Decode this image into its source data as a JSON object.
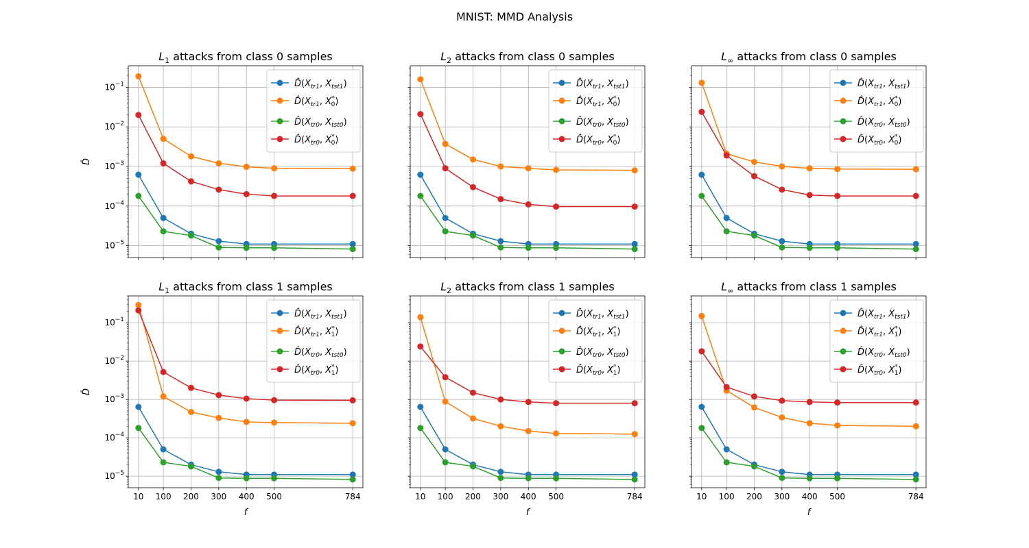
{
  "figure": {
    "title": "MNIST: MMD Analysis"
  },
  "colors": {
    "blue": "#1f77b4",
    "orange": "#ff7f0e",
    "green": "#2ca02c",
    "red": "#d62728",
    "grid": "#b0b0b0"
  },
  "chart_data": [
    {
      "type": "line",
      "yscale": "log",
      "ylim": [
        5e-06,
        0.35
      ],
      "title": "L1 attacks from class 0 samples",
      "title_math": {
        "var": "L",
        "sub": "1",
        "rest": " attacks from class 0 samples"
      },
      "xlabel": "",
      "ylabel": "D̂",
      "x": [
        10,
        100,
        200,
        300,
        400,
        500,
        784
      ],
      "xtick_labels": [
        "10",
        "100",
        "200",
        "300",
        "400",
        "500",
        "784"
      ],
      "ytick_labels": [
        "10",
        "10",
        "10",
        "10",
        "10"
      ],
      "ytick_exponents": [
        "-5",
        "-4",
        "-3",
        "-2",
        "-1"
      ],
      "series": [
        {
          "name": "D̂(X_tr1, X_tst1)",
          "D_args": [
            "X",
            "tr1",
            "X",
            "tst1"
          ],
          "color": "#1f77b4",
          "values": [
            0.00062,
            5e-05,
            2e-05,
            1.3e-05,
            1.1e-05,
            1.1e-05,
            1.1e-05
          ]
        },
        {
          "name": "D̂(X_tr1, X_0*)",
          "D_args": [
            "X",
            "tr1",
            "X",
            "0",
            "*"
          ],
          "color": "#ff7f0e",
          "values": [
            0.19,
            0.005,
            0.0018,
            0.0012,
            0.00098,
            0.0009,
            0.00088
          ]
        },
        {
          "name": "D̂(X_tr0, X_tst0)",
          "D_args": [
            "X",
            "tr0",
            "X",
            "tst0"
          ],
          "color": "#2ca02c",
          "values": [
            0.00018,
            2.3e-05,
            1.8e-05,
            9e-06,
            8.8e-06,
            8.8e-06,
            8.2e-06
          ]
        },
        {
          "name": "D̂(X_tr0, X_0*)",
          "D_args": [
            "X",
            "tr0",
            "X",
            "0",
            "*"
          ],
          "color": "#d62728",
          "values": [
            0.02,
            0.0012,
            0.00042,
            0.00026,
            0.0002,
            0.00018,
            0.00018
          ]
        }
      ]
    },
    {
      "type": "line",
      "yscale": "log",
      "ylim": [
        5e-06,
        0.35
      ],
      "title": "L2 attacks from class 0 samples",
      "title_math": {
        "var": "L",
        "sub": "2",
        "rest": " attacks from class 0 samples"
      },
      "xlabel": "",
      "ylabel": "",
      "x": [
        10,
        100,
        200,
        300,
        400,
        500,
        784
      ],
      "xtick_labels": [
        "10",
        "100",
        "200",
        "300",
        "400",
        "500",
        "784"
      ],
      "ytick_labels": [],
      "ytick_exponents": [],
      "series": [
        {
          "name": "D̂(X_tr1, X_tst1)",
          "D_args": [
            "X",
            "tr1",
            "X",
            "tst1"
          ],
          "color": "#1f77b4",
          "values": [
            0.00062,
            5e-05,
            2e-05,
            1.3e-05,
            1.1e-05,
            1.1e-05,
            1.1e-05
          ]
        },
        {
          "name": "D̂(X_tr1, X_0*)",
          "D_args": [
            "X",
            "tr1",
            "X",
            "0",
            "*"
          ],
          "color": "#ff7f0e",
          "values": [
            0.16,
            0.0037,
            0.0015,
            0.001,
            0.0009,
            0.00082,
            0.0008
          ]
        },
        {
          "name": "D̂(X_tr0, X_tst0)",
          "D_args": [
            "X",
            "tr0",
            "X",
            "tst0"
          ],
          "color": "#2ca02c",
          "values": [
            0.00018,
            2.3e-05,
            1.8e-05,
            9e-06,
            8.8e-06,
            8.8e-06,
            8.2e-06
          ]
        },
        {
          "name": "D̂(X_tr0, X_0*)",
          "D_args": [
            "X",
            "tr0",
            "X",
            "0",
            "*"
          ],
          "color": "#d62728",
          "values": [
            0.021,
            0.0009,
            0.0003,
            0.00015,
            0.00011,
            9.7e-05,
            9.7e-05
          ]
        }
      ]
    },
    {
      "type": "line",
      "yscale": "log",
      "ylim": [
        5e-06,
        0.35
      ],
      "title": "L∞ attacks from class 0 samples",
      "title_math": {
        "var": "L",
        "sub": "∞",
        "rest": " attacks from class 0 samples"
      },
      "xlabel": "",
      "ylabel": "",
      "x": [
        10,
        100,
        200,
        300,
        400,
        500,
        784
      ],
      "xtick_labels": [
        "10",
        "100",
        "200",
        "300",
        "400",
        "500",
        "784"
      ],
      "ytick_labels": [],
      "ytick_exponents": [],
      "series": [
        {
          "name": "D̂(X_tr1, X_tst1)",
          "D_args": [
            "X",
            "tr1",
            "X",
            "tst1"
          ],
          "color": "#1f77b4",
          "values": [
            0.00062,
            5e-05,
            2e-05,
            1.3e-05,
            1.1e-05,
            1.1e-05,
            1.1e-05
          ]
        },
        {
          "name": "D̂(X_tr1, X_0*)",
          "D_args": [
            "X",
            "tr1",
            "X",
            "0",
            "*"
          ],
          "color": "#ff7f0e",
          "values": [
            0.13,
            0.0021,
            0.0013,
            0.001,
            0.0009,
            0.00086,
            0.00085
          ]
        },
        {
          "name": "D̂(X_tr0, X_tst0)",
          "D_args": [
            "X",
            "tr0",
            "X",
            "tst0"
          ],
          "color": "#2ca02c",
          "values": [
            0.00018,
            2.3e-05,
            1.8e-05,
            9e-06,
            8.8e-06,
            8.8e-06,
            8.2e-06
          ]
        },
        {
          "name": "D̂(X_tr0, X_0*)",
          "D_args": [
            "X",
            "tr0",
            "X",
            "0",
            "*"
          ],
          "color": "#d62728",
          "values": [
            0.024,
            0.0019,
            0.00057,
            0.00026,
            0.00019,
            0.00018,
            0.00018
          ]
        }
      ]
    },
    {
      "type": "line",
      "yscale": "log",
      "ylim": [
        5e-06,
        0.5
      ],
      "title": "L1 attacks from class 1 samples",
      "title_math": {
        "var": "L",
        "sub": "1",
        "rest": " attacks from class 1 samples"
      },
      "xlabel": "f",
      "ylabel": "D̂",
      "x": [
        10,
        100,
        200,
        300,
        400,
        500,
        784
      ],
      "xtick_labels": [
        "10",
        "100",
        "200",
        "300",
        "400",
        "500",
        "784"
      ],
      "ytick_labels": [
        "10",
        "10",
        "10",
        "10",
        "10"
      ],
      "ytick_exponents": [
        "-5",
        "-4",
        "-3",
        "-2",
        "-1"
      ],
      "series": [
        {
          "name": "D̂(X_tr1, X_tst1)",
          "D_args": [
            "X",
            "tr1",
            "X",
            "tst1"
          ],
          "color": "#1f77b4",
          "values": [
            0.00064,
            5e-05,
            2e-05,
            1.3e-05,
            1.1e-05,
            1.1e-05,
            1.1e-05
          ]
        },
        {
          "name": "D̂(X_tr1, X_1*)",
          "D_args": [
            "X",
            "tr1",
            "X",
            "1",
            "*"
          ],
          "color": "#ff7f0e",
          "values": [
            0.29,
            0.0012,
            0.00047,
            0.00033,
            0.00026,
            0.00025,
            0.00024
          ]
        },
        {
          "name": "D̂(X_tr0, X_tst0)",
          "D_args": [
            "X",
            "tr0",
            "X",
            "tst0"
          ],
          "color": "#2ca02c",
          "values": [
            0.00018,
            2.3e-05,
            1.8e-05,
            9e-06,
            8.8e-06,
            8.8e-06,
            8.2e-06
          ]
        },
        {
          "name": "D̂(X_tr0, X_1*)",
          "D_args": [
            "X",
            "tr0",
            "X",
            "1",
            "*"
          ],
          "color": "#d62728",
          "values": [
            0.21,
            0.0052,
            0.002,
            0.0013,
            0.00105,
            0.00096,
            0.00095
          ]
        }
      ]
    },
    {
      "type": "line",
      "yscale": "log",
      "ylim": [
        5e-06,
        0.5
      ],
      "title": "L2 attacks from class 1 samples",
      "title_math": {
        "var": "L",
        "sub": "2",
        "rest": " attacks from class 1 samples"
      },
      "xlabel": "f",
      "ylabel": "",
      "x": [
        10,
        100,
        200,
        300,
        400,
        500,
        784
      ],
      "xtick_labels": [
        "10",
        "100",
        "200",
        "300",
        "400",
        "500",
        "784"
      ],
      "ytick_labels": [],
      "ytick_exponents": [],
      "series": [
        {
          "name": "D̂(X_tr1, X_tst1)",
          "D_args": [
            "X",
            "tr1",
            "X",
            "tst1"
          ],
          "color": "#1f77b4",
          "values": [
            0.00064,
            5e-05,
            2e-05,
            1.3e-05,
            1.1e-05,
            1.1e-05,
            1.1e-05
          ]
        },
        {
          "name": "D̂(X_tr1, X_1*)",
          "D_args": [
            "X",
            "tr1",
            "X",
            "1",
            "*"
          ],
          "color": "#ff7f0e",
          "values": [
            0.14,
            0.00088,
            0.00032,
            0.0002,
            0.00015,
            0.00013,
            0.000125
          ]
        },
        {
          "name": "D̂(X_tr0, X_tst0)",
          "D_args": [
            "X",
            "tr0",
            "X",
            "tst0"
          ],
          "color": "#2ca02c",
          "values": [
            0.00018,
            2.3e-05,
            1.8e-05,
            9e-06,
            8.8e-06,
            8.8e-06,
            8.2e-06
          ]
        },
        {
          "name": "D̂(X_tr0, X_1*)",
          "D_args": [
            "X",
            "tr0",
            "X",
            "1",
            "*"
          ],
          "color": "#d62728",
          "values": [
            0.024,
            0.0038,
            0.0015,
            0.001,
            0.00086,
            0.0008,
            0.0008
          ]
        }
      ]
    },
    {
      "type": "line",
      "yscale": "log",
      "ylim": [
        5e-06,
        0.5
      ],
      "title": "L∞ attacks from class 1 samples",
      "title_math": {
        "var": "L",
        "sub": "∞",
        "rest": " attacks from class 1 samples"
      },
      "xlabel": "f",
      "ylabel": "",
      "x": [
        10,
        100,
        200,
        300,
        400,
        500,
        784
      ],
      "xtick_labels": [
        "10",
        "100",
        "200",
        "300",
        "400",
        "500",
        "784"
      ],
      "ytick_labels": [],
      "ytick_exponents": [],
      "series": [
        {
          "name": "D̂(X_tr1, X_tst1)",
          "D_args": [
            "X",
            "tr1",
            "X",
            "tst1"
          ],
          "color": "#1f77b4",
          "values": [
            0.00064,
            5e-05,
            2e-05,
            1.3e-05,
            1.1e-05,
            1.1e-05,
            1.1e-05
          ]
        },
        {
          "name": "D̂(X_tr1, X_1*)",
          "D_args": [
            "X",
            "tr1",
            "X",
            "1",
            "*"
          ],
          "color": "#ff7f0e",
          "values": [
            0.15,
            0.0017,
            0.00062,
            0.00034,
            0.00024,
            0.00021,
            0.0002
          ]
        },
        {
          "name": "D̂(X_tr0, X_tst0)",
          "D_args": [
            "X",
            "tr0",
            "X",
            "tst0"
          ],
          "color": "#2ca02c",
          "values": [
            0.00018,
            2.3e-05,
            1.8e-05,
            9e-06,
            8.8e-06,
            8.8e-06,
            8.2e-06
          ]
        },
        {
          "name": "D̂(X_tr0, X_1*)",
          "D_args": [
            "X",
            "tr0",
            "X",
            "1",
            "*"
          ],
          "color": "#d62728",
          "values": [
            0.018,
            0.0021,
            0.0012,
            0.00093,
            0.00086,
            0.00083,
            0.00083
          ]
        }
      ]
    }
  ]
}
